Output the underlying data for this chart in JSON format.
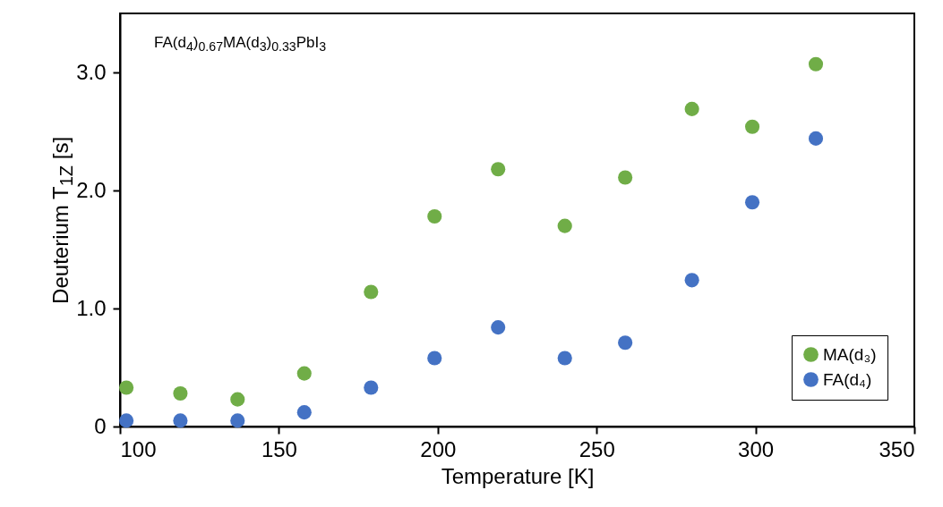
{
  "chart_data": {
    "type": "scatter",
    "annotations": [
      "FA(d$_{4}$)$_{0.67}$MA(d$_{3}$)$_{0.33}$PbI$_{3}$"
    ],
    "xlabel": "Temperature [K]",
    "ylabel": "Deuterium T$_{1Z}$ [s]",
    "x": [
      102,
      119,
      137,
      158,
      179,
      199,
      219,
      240,
      259,
      280,
      299,
      319
    ],
    "series": [
      {
        "name": "MA(d₃)",
        "color": "#70ad47",
        "values": [
          0.33,
          0.28,
          0.23,
          0.45,
          1.14,
          1.78,
          2.18,
          1.7,
          2.11,
          2.69,
          2.54,
          3.07
        ]
      },
      {
        "name": "FA(d₄)",
        "color": "#4472c4",
        "values": [
          0.05,
          0.05,
          0.05,
          0.12,
          0.33,
          0.58,
          0.84,
          0.58,
          0.71,
          1.24,
          1.9,
          2.44
        ]
      }
    ],
    "xlim": [
      100,
      350
    ],
    "xticks": [
      100,
      150,
      200,
      250,
      300,
      350
    ],
    "ylim": [
      0,
      3.5
    ],
    "yticks": [
      {
        "value": 0,
        "label": "0"
      },
      {
        "value": 1,
        "label": "1.0"
      },
      {
        "value": 2,
        "label": "2.0"
      },
      {
        "value": 3,
        "label": "3.0"
      }
    ],
    "grid": false,
    "legend": "bottom right",
    "marker": "circle"
  }
}
